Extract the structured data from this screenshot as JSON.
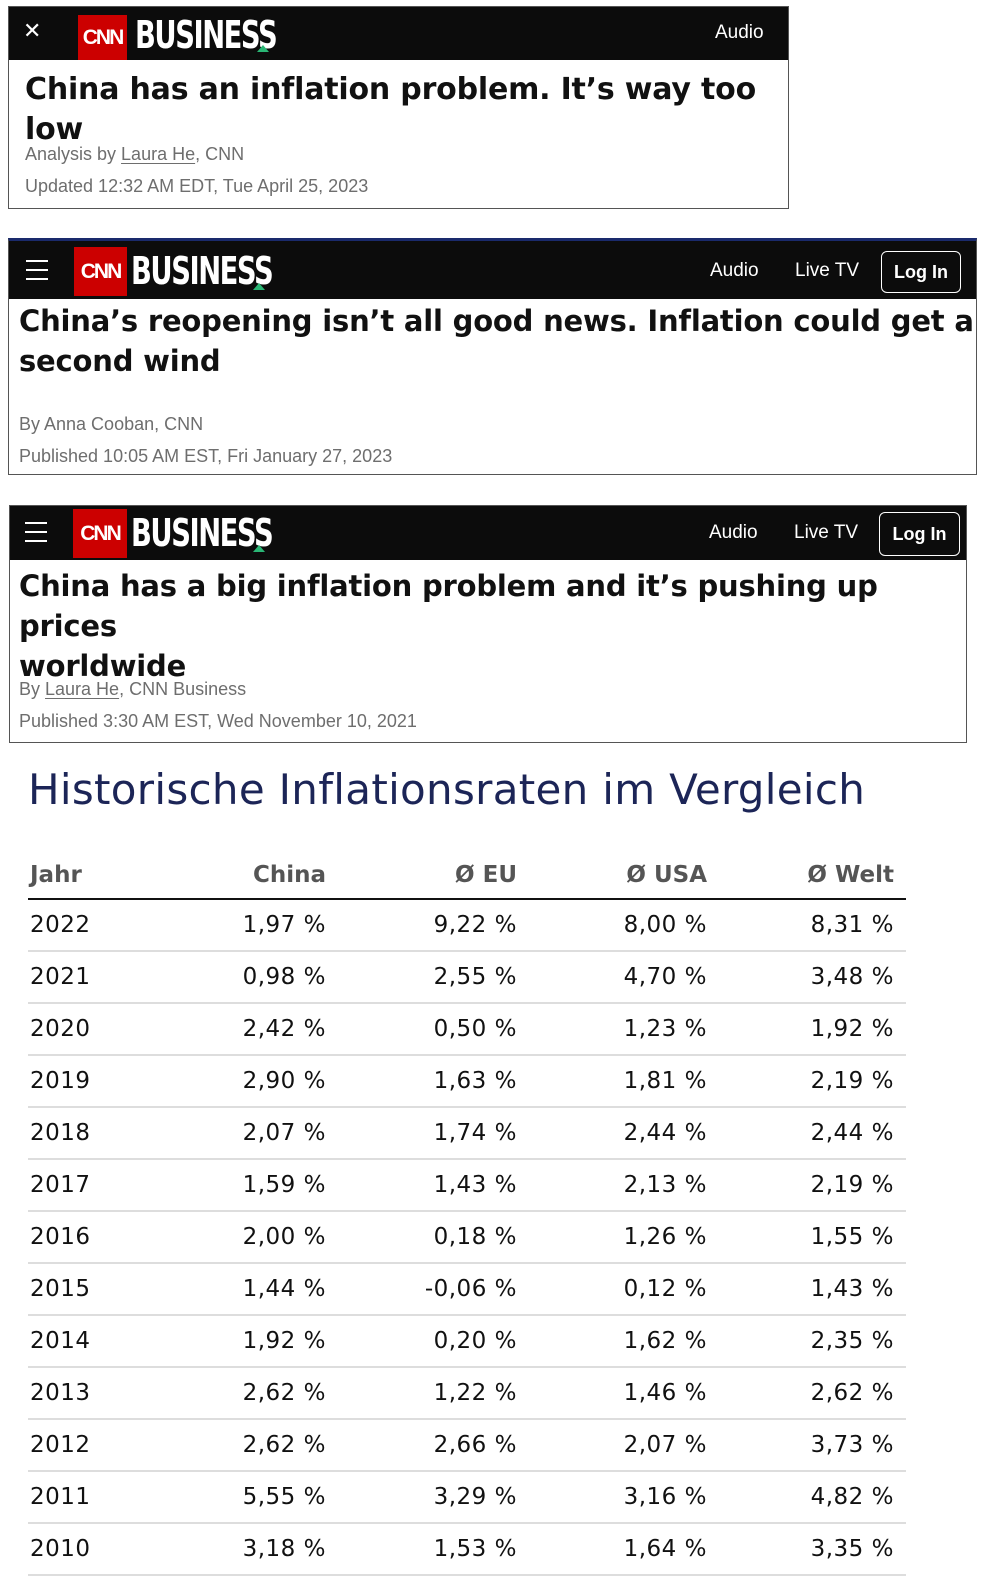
{
  "articles": [
    {
      "brand": {
        "logo": "CNN",
        "section": "BUSINESS"
      },
      "nav": [
        "Audio"
      ],
      "headline": "China has an inflation problem. It’s way too low",
      "byline_prefix": "Analysis by ",
      "author": "Laura He",
      "byline_suffix": ", CNN",
      "date": "Updated 12:32 AM EDT, Tue April 25, 2023",
      "icons": {
        "close": "close-icon"
      }
    },
    {
      "brand": {
        "logo": "CNN",
        "section": "BUSINESS"
      },
      "nav": [
        "Audio",
        "Live TV"
      ],
      "login": "Log In",
      "headline_line1": "China’s reopening isn’t all good news. Inflation could get a",
      "headline_line2": "second wind",
      "byline": "By Anna Cooban, CNN",
      "date": "Published 10:05 AM EST, Fri January 27, 2023",
      "icons": {
        "menu": "hamburger-icon"
      }
    },
    {
      "brand": {
        "logo": "CNN",
        "section": "BUSINESS"
      },
      "nav": [
        "Audio",
        "Live TV"
      ],
      "login": "Log In",
      "headline_line1": "China has a big inflation problem and it’s pushing up prices",
      "headline_line2": "worldwide",
      "byline_prefix": "By ",
      "author": "Laura He",
      "byline_suffix": ", CNN Business",
      "date": "Published 3:30 AM EST, Wed November 10, 2021",
      "icons": {
        "menu": "hamburger-icon"
      }
    }
  ],
  "section_title": "Historische Inflationsraten im Vergleich",
  "table": {
    "headers": [
      "Jahr",
      "China",
      "Ø EU",
      "Ø USA",
      "Ø Welt"
    ],
    "rows": [
      [
        "2022",
        "1,97 %",
        "9,22 %",
        "8,00 %",
        "8,31 %"
      ],
      [
        "2021",
        "0,98 %",
        "2,55 %",
        "4,70 %",
        "3,48 %"
      ],
      [
        "2020",
        "2,42 %",
        "0,50 %",
        "1,23 %",
        "1,92 %"
      ],
      [
        "2019",
        "2,90 %",
        "1,63 %",
        "1,81 %",
        "2,19 %"
      ],
      [
        "2018",
        "2,07 %",
        "1,74 %",
        "2,44 %",
        "2,44 %"
      ],
      [
        "2017",
        "1,59 %",
        "1,43 %",
        "2,13 %",
        "2,19 %"
      ],
      [
        "2016",
        "2,00 %",
        "0,18 %",
        "1,26 %",
        "1,55 %"
      ],
      [
        "2015",
        "1,44 %",
        "-0,06 %",
        "0,12 %",
        "1,43 %"
      ],
      [
        "2014",
        "1,92 %",
        "0,20 %",
        "1,62 %",
        "2,35 %"
      ],
      [
        "2013",
        "2,62 %",
        "1,22 %",
        "1,46 %",
        "2,62 %"
      ],
      [
        "2012",
        "2,62 %",
        "2,66 %",
        "2,07 %",
        "3,73 %"
      ],
      [
        "2011",
        "5,55 %",
        "3,29 %",
        "3,16 %",
        "4,82 %"
      ],
      [
        "2010",
        "3,18 %",
        "1,53 %",
        "1,64 %",
        "3,35 %"
      ]
    ]
  },
  "colors": {
    "cnn_red": "#cc0000",
    "bar": "#0c0c0c",
    "title_navy": "#1c2557",
    "business_tick": "#2ab675"
  }
}
